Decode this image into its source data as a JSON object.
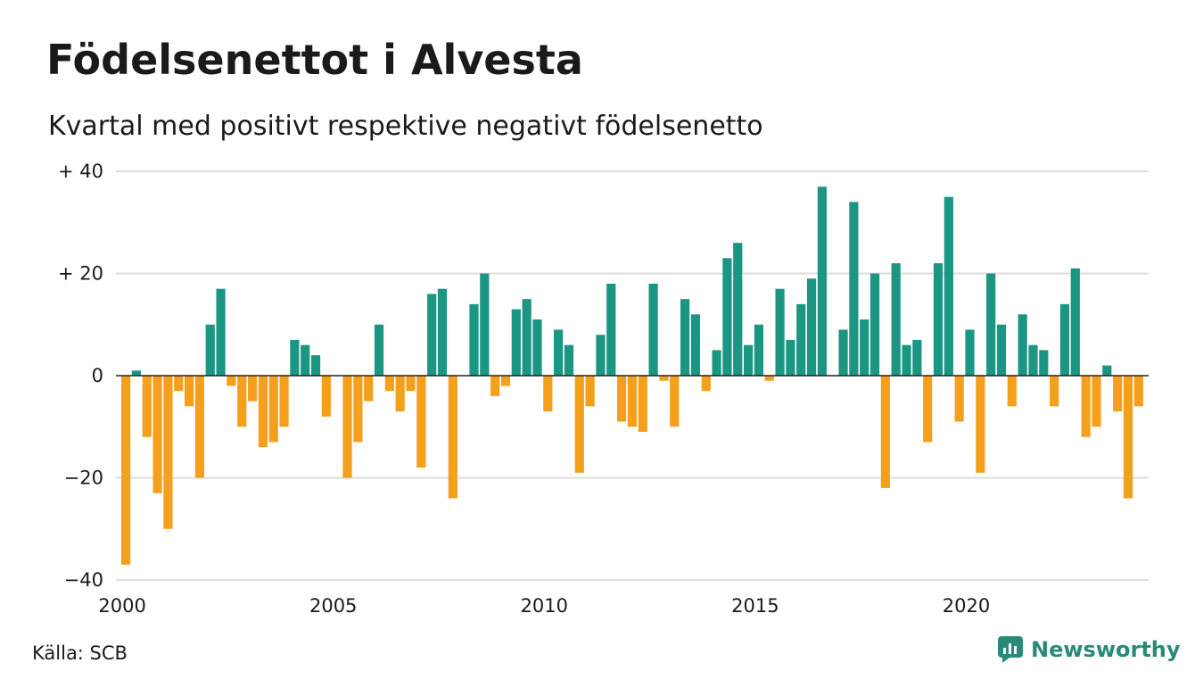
{
  "title": "Födelsenettot i Alvesta",
  "subtitle": "Kvartal med positivt respektive negativt födelsenetto",
  "source": "Källa: SCB",
  "brand": "Newsworthy",
  "colors": {
    "positive": "#1a9683",
    "negative": "#f4a01c",
    "grid": "#dedede",
    "axis": "#222222",
    "brand": "#2a8a78"
  },
  "chart_data": {
    "type": "bar",
    "x_unit": "quarter",
    "x_start": "2000 Q1",
    "x_ticks": [
      "2000",
      "2005",
      "2010",
      "2015",
      "2020"
    ],
    "y_ticks": [
      "+ 40",
      "+ 20",
      "0",
      "−20",
      "−40"
    ],
    "ylim": [
      -40,
      40
    ],
    "grid": true,
    "values": [
      -37,
      1,
      -12,
      -23,
      -30,
      -3,
      -6,
      -20,
      10,
      17,
      -2,
      -10,
      -5,
      -14,
      -13,
      -10,
      7,
      6,
      4,
      -8,
      0,
      -20,
      -13,
      -5,
      10,
      -3,
      -7,
      -3,
      -18,
      16,
      17,
      -24,
      0,
      14,
      20,
      -4,
      -2,
      13,
      15,
      11,
      -7,
      9,
      6,
      -19,
      -6,
      8,
      18,
      -9,
      -10,
      -11,
      18,
      -1,
      -10,
      15,
      12,
      -3,
      5,
      23,
      26,
      6,
      10,
      -1,
      17,
      7,
      14,
      19,
      37,
      0,
      9,
      34,
      11,
      20,
      -22,
      22,
      6,
      7,
      -13,
      22,
      35,
      -9,
      9,
      -19,
      20,
      10,
      -6,
      12,
      6,
      5,
      -6,
      14,
      21,
      -12,
      -10,
      2,
      -7,
      -24,
      -6
    ]
  }
}
